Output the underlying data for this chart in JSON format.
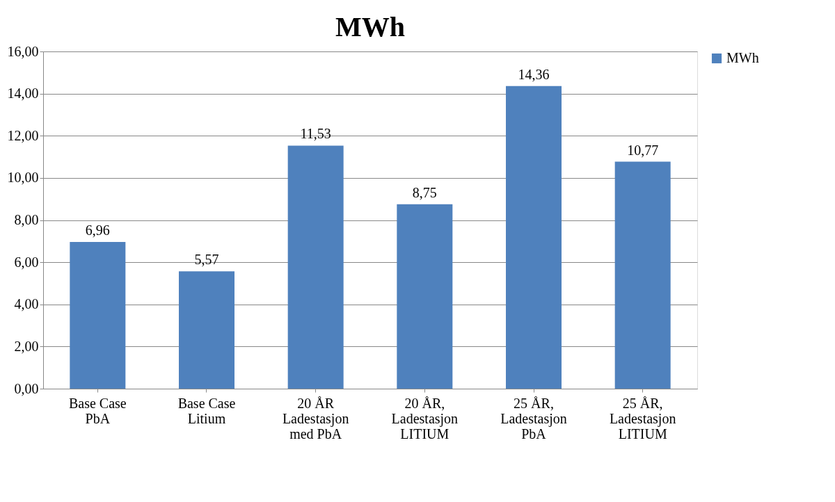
{
  "chart_data": {
    "type": "bar",
    "title": "MWh",
    "categories": [
      "Base Case\nPbA",
      "Base Case\nLitium",
      "20 ÅR\nLadestasjon\nmed PbA",
      "20 ÅR,\nLadestasjon\nLITIUM",
      "25 ÅR,\nLadestasjon\nPbA",
      "25 ÅR,\nLadestasjon\nLITIUM"
    ],
    "series": [
      {
        "name": "MWh",
        "color": "#4f81bd",
        "values": [
          6.96,
          5.57,
          11.53,
          8.75,
          14.36,
          10.77
        ],
        "value_labels": [
          "6,96",
          "5,57",
          "11,53",
          "8,75",
          "14,36",
          "10,77"
        ]
      }
    ],
    "ylim": [
      0,
      16
    ],
    "yticks": [
      {
        "value": 0,
        "label": "0,00"
      },
      {
        "value": 2,
        "label": "2,00"
      },
      {
        "value": 4,
        "label": "4,00"
      },
      {
        "value": 6,
        "label": "6,00"
      },
      {
        "value": 8,
        "label": "8,00"
      },
      {
        "value": 10,
        "label": "10,00"
      },
      {
        "value": 12,
        "label": "12,00"
      },
      {
        "value": 14,
        "label": "14,00"
      },
      {
        "value": 16,
        "label": "16,00"
      }
    ],
    "grid": "y",
    "legend": "right"
  }
}
